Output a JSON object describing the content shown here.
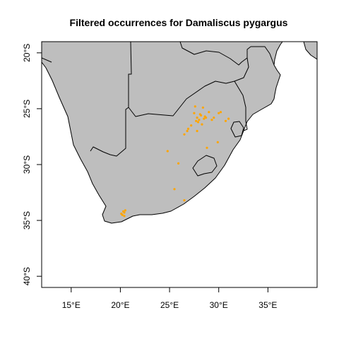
{
  "chart_data": {
    "type": "scatter",
    "title": "Filtered occurrences for Damaliscus pygargus",
    "xlabel": "",
    "ylabel": "",
    "xlim": [
      12,
      40
    ],
    "ylim": [
      -41,
      -19
    ],
    "x_ticks": [
      {
        "value": 15,
        "label": "15°E"
      },
      {
        "value": 20,
        "label": "20°E"
      },
      {
        "value": 25,
        "label": "25°E"
      },
      {
        "value": 30,
        "label": "30°E"
      },
      {
        "value": 35,
        "label": "35°E"
      }
    ],
    "y_ticks": [
      {
        "value": -20,
        "label": "20°S"
      },
      {
        "value": -25,
        "label": "25°S"
      },
      {
        "value": -30,
        "label": "30°S"
      },
      {
        "value": -35,
        "label": "35°S"
      },
      {
        "value": -40,
        "label": "40°S"
      }
    ],
    "grid": false,
    "land_color": "#bebebe",
    "point_color": "#ffa500",
    "series": [
      {
        "x": [
          27.8,
          28.2,
          27.5,
          28.5,
          28.0,
          27.9,
          28.3,
          28.1,
          27.7,
          28.6,
          29.0,
          28.4,
          27.6,
          28.7,
          27.2,
          26.8,
          26.9,
          26.5,
          27.8,
          30.0,
          30.2,
          29.5,
          29.3,
          30.7,
          31.0,
          29.9,
          28.8,
          24.8,
          25.9,
          25.5,
          26.5,
          20.2,
          20.4,
          20.1,
          20.3,
          20.5,
          20.4
        ],
        "y": [
          -25.8,
          -25.6,
          -25.4,
          -25.9,
          -26.0,
          -26.2,
          -26.4,
          -25.5,
          -26.1,
          -25.7,
          -25.3,
          -24.9,
          -24.8,
          -25.8,
          -26.5,
          -27.0,
          -26.8,
          -27.3,
          -27.0,
          -25.4,
          -25.3,
          -25.8,
          -26.0,
          -26.1,
          -25.9,
          -28.0,
          -28.5,
          -28.8,
          -29.9,
          -32.2,
          -33.2,
          -34.5,
          -34.3,
          -34.4,
          -34.2,
          -34.1,
          -34.6
        ]
      }
    ]
  }
}
